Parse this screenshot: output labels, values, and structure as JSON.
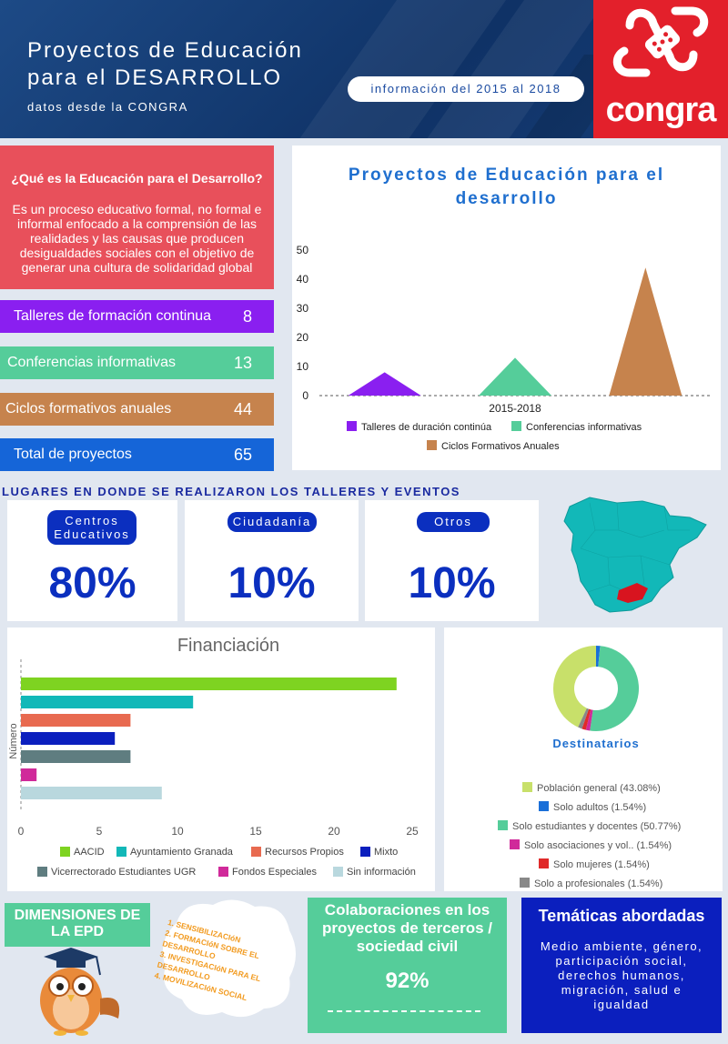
{
  "header": {
    "title_line1": "Proyectos de Educación",
    "title_line2": "para el DESARROLLO",
    "subtitle": "datos desde la CONGRA",
    "info": "información del 2015 al 2018",
    "logo_text": "congra",
    "colors": {
      "navy": "#0f3266",
      "red": "#e3202b"
    }
  },
  "definition": {
    "question": "¿Qué es la Educación para el Desarrollo?",
    "text": "Es un proceso educativo formal, no formal e informal enfocado a la comprensión de las realidades y las causas que producen desigualdades sociales con el objetivo de generar una cultura de solidaridad global"
  },
  "stats": [
    {
      "label": "Talleres de formación continua",
      "value": "8",
      "color": "#8a1ff0"
    },
    {
      "label": "Conferencias informativas",
      "value": "13",
      "color": "#55cd9a"
    },
    {
      "label": "Ciclos formativos anuales",
      "value": "44",
      "color": "#c6834d"
    },
    {
      "label": "Total de proyectos",
      "value": "65",
      "color": "#1565d8"
    }
  ],
  "chart_data": [
    {
      "type": "bar",
      "title": "Proyectos de Educación para el desarrollo",
      "categories": [
        "2015-2018"
      ],
      "ylim": [
        0,
        50
      ],
      "yticks": [
        "0",
        "10",
        "20",
        "30",
        "40",
        "50"
      ],
      "legend_position": "bottom",
      "series": [
        {
          "name": "Talleres de duración continúa",
          "values": [
            8
          ],
          "color": "#8a1ff0"
        },
        {
          "name": "Conferencias informativas",
          "values": [
            13
          ],
          "color": "#55cd9a"
        },
        {
          "name": "Ciclos Formativos Anuales",
          "values": [
            44
          ],
          "color": "#c6834d"
        }
      ]
    },
    {
      "type": "bar",
      "orientation": "horizontal",
      "title": "Financiación",
      "ylabel": "Número",
      "xlim": [
        0,
        25
      ],
      "xticks": [
        "0",
        "5",
        "10",
        "15",
        "20",
        "25"
      ],
      "legend_position": "bottom",
      "series": [
        {
          "name": "AACID",
          "values": [
            24
          ],
          "color": "#7ed321"
        },
        {
          "name": "Ayuntamiento Granada",
          "values": [
            11
          ],
          "color": "#12b8b8"
        },
        {
          "name": "Recursos Propios",
          "values": [
            7
          ],
          "color": "#e86a50"
        },
        {
          "name": "Mixto",
          "values": [
            6
          ],
          "color": "#0b1fbe"
        },
        {
          "name": "Vicerrectorado Estudiantes UGR",
          "values": [
            7
          ],
          "color": "#5f7d80"
        },
        {
          "name": "Fondos Especiales",
          "values": [
            1
          ],
          "color": "#d02a9a"
        },
        {
          "name": "Sin información",
          "values": [
            9
          ],
          "color": "#b9d8de"
        }
      ]
    },
    {
      "type": "pie",
      "title": "Destinatarios",
      "legend_position": "bottom",
      "slices": [
        {
          "label": "Población general (43.08%)",
          "value": 43.08,
          "color": "#c8e06a"
        },
        {
          "label": "Solo adultos (1.54%)",
          "value": 1.54,
          "color": "#1a6fd8"
        },
        {
          "label": "Solo estudiantes y docentes (50.77%)",
          "value": 50.77,
          "color": "#55cd9a"
        },
        {
          "label": "Solo asociaciones y vol.. (1.54%)",
          "value": 1.54,
          "color": "#d02a9a"
        },
        {
          "label": "Solo mujeres (1.54%)",
          "value": 1.54,
          "color": "#e02a2a"
        },
        {
          "label": "Solo a profesionales (1.54%)",
          "value": 1.54,
          "color": "#888888"
        }
      ]
    }
  ],
  "places": {
    "title": "LUGARES EN DONDE SE REALIZARON LOS TALLERES Y EVENTOS",
    "cards": [
      {
        "label": "Centros Educativos",
        "value": "80%"
      },
      {
        "label": "Ciudadanía",
        "value": "10%"
      },
      {
        "label": "Otros",
        "value": "10%"
      }
    ],
    "map_colors": {
      "land": "#12b8b8",
      "highlight": "#d8141f"
    }
  },
  "dimensions": {
    "title": "DIMENSIONES DE LA EPD",
    "items": [
      "1. SENSIBILIZACIóN",
      "2. FORMACIóN SOBRE EL DESARROLLO",
      "3. INVESTIGACIóN PARA EL DESARROLLO",
      "4. MOVILIZACIóN SOCIAL"
    ]
  },
  "colaboraciones": {
    "title": "Colaboraciones en los proyectos de terceros / sociedad civil",
    "value": "92%"
  },
  "tematicas": {
    "title": "Temáticas abordadas",
    "text": "Medio ambiente, género, participación social, derechos humanos, migración, salud e igualdad"
  }
}
